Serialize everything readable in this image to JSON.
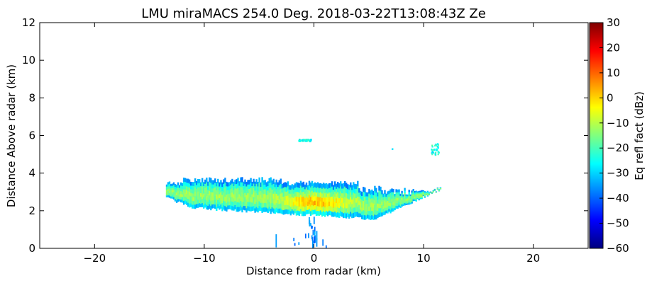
{
  "chart_data": {
    "type": "heatmap",
    "title": "LMU miraMACS 254.0 Deg. 2018-03-22T13:08:43Z  Ze",
    "xlabel": "Distance from radar (km)",
    "ylabel": "Distance Above radar  (km)",
    "xlim": [
      -25,
      25
    ],
    "ylim": [
      0,
      12
    ],
    "x_ticks": [
      -20,
      -10,
      0,
      10,
      20
    ],
    "x_tick_labels": [
      "−20",
      "−10",
      "0",
      "10",
      "20"
    ],
    "y_ticks": [
      0,
      2,
      4,
      6,
      8,
      10,
      12
    ],
    "y_tick_labels": [
      "0",
      "2",
      "4",
      "6",
      "8",
      "10",
      "12"
    ],
    "grid": false,
    "colorbar": {
      "label": "Eq refl fact (dBz)",
      "colormap": "jet",
      "range": [
        -60,
        30
      ],
      "ticks": [
        -60,
        -50,
        -40,
        -30,
        -20,
        -10,
        0,
        10,
        20,
        30
      ],
      "tick_labels": [
        "−60",
        "−50",
        "−40",
        "−30",
        "−20",
        "−10",
        "0",
        "10",
        "20",
        "30"
      ]
    },
    "echo_regions": [
      {
        "region": "main layer",
        "x_range": [
          -13.5,
          11.5
        ],
        "height_range": [
          1.4,
          3.8
        ],
        "reflectivity_dbz": [
          -40,
          -5
        ]
      },
      {
        "region": "core",
        "x_range": [
          -3,
          3
        ],
        "height_range": [
          1.9,
          3.0
        ],
        "reflectivity_dbz": [
          0,
          10
        ]
      },
      {
        "region": "small cloud",
        "x_range": [
          -1.5,
          -0.2
        ],
        "height_range": [
          5.7,
          5.85
        ],
        "reflectivity_dbz": [
          -30,
          -20
        ]
      },
      {
        "region": "cloud fragment",
        "x_range": [
          10.5,
          11.5
        ],
        "height_range": [
          5.0,
          5.6
        ],
        "reflectivity_dbz": [
          -30,
          -20
        ]
      },
      {
        "region": "near-surface echoes",
        "x_range": [
          -3.5,
          2
        ],
        "height_range": [
          0,
          1.6
        ],
        "reflectivity_dbz": [
          -45,
          -30
        ]
      }
    ]
  }
}
